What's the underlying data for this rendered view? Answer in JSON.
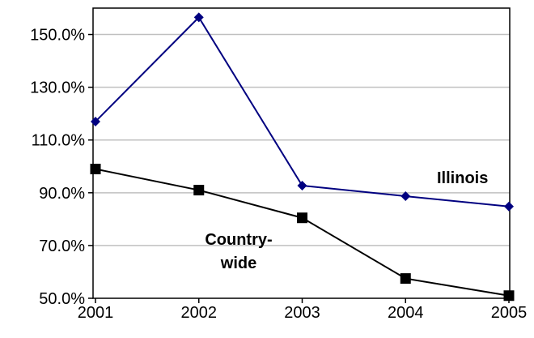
{
  "chart_data": {
    "type": "line",
    "title": "",
    "xlabel": "",
    "ylabel": "",
    "categories": [
      "2001",
      "2002",
      "2003",
      "2004",
      "2005"
    ],
    "ylim": [
      50,
      160
    ],
    "yticks": [
      50,
      70,
      90,
      110,
      130,
      150
    ],
    "y_tick_labels": [
      "50.0%",
      "70.0%",
      "90.0%",
      "110.0%",
      "130.0%",
      "150.0%"
    ],
    "grid": true,
    "legend": "none",
    "series": [
      {
        "name": "Illinois",
        "label_lines": [
          "Illinois"
        ],
        "color": "#000080",
        "marker": "diamond",
        "values": [
          117,
          156.5,
          92.7,
          88.7,
          84.8
        ]
      },
      {
        "name": "Country-wide",
        "label_lines": [
          "Country-",
          "wide"
        ],
        "color": "#000000",
        "marker": "square",
        "values": [
          99,
          91,
          80.5,
          57.5,
          51
        ]
      }
    ]
  }
}
